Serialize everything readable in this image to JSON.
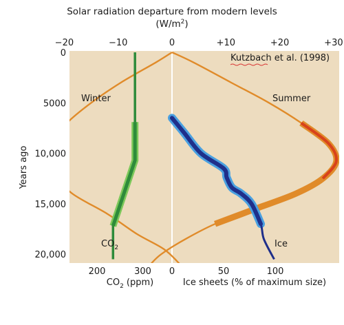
{
  "chart_data": {
    "type": "line",
    "title_line1": "Solar radiation departure from modern levels",
    "title_line2": "(W/m",
    "title_sup": "2",
    "title_close": ")",
    "ylabel": "Years ago",
    "y_axis": {
      "range": [
        0,
        20500
      ],
      "inverted": true,
      "ticks": [
        "0",
        "5000",
        "10,000",
        "15,000",
        "20,000"
      ],
      "tick_values": [
        0,
        5000,
        10000,
        15000,
        20000
      ]
    },
    "top_axis": {
      "label": "W/m2",
      "range": [
        -24,
        34
      ],
      "ticks": [
        "−20",
        "−10",
        "0",
        "+10",
        "+20",
        "+30"
      ],
      "tick_values": [
        -20,
        -10,
        0,
        10,
        20,
        30
      ]
    },
    "co2_axis": {
      "label_main": "CO",
      "label_sub": "2",
      "label_unit": " (ppm)",
      "range": [
        180,
        335
      ],
      "ticks": [
        "200",
        "300"
      ],
      "tick_values": [
        200,
        300
      ]
    },
    "ice_axis": {
      "label": "Ice sheets (% of maximum size)",
      "range": [
        0,
        140
      ],
      "ticks": [
        "0",
        "50",
        "100"
      ],
      "tick_values": [
        0,
        50,
        100
      ]
    },
    "citation": "Kutzbach et al. (1998)",
    "labels": {
      "winter": "Winter",
      "summer": "Summer",
      "co2_main": "CO",
      "co2_sub": "2",
      "ice": "Ice"
    },
    "colors": {
      "background": "#eddcbf",
      "insolation": "#e08b2a",
      "summer_band": "#d8421a",
      "co2": "#2e8b3a",
      "co2_light": "#7cc85a",
      "ice": "#1f2f8a",
      "ice_light": "#4aa0e0",
      "zero_line": "#ffffff",
      "citation_underline": "#d83030"
    },
    "series": [
      {
        "name": "Winter",
        "axis": "W/m2",
        "points": [
          [
            0,
            0
          ],
          [
            1000,
            -3
          ],
          [
            3000,
            -9.5
          ],
          [
            5000,
            -15
          ],
          [
            7000,
            -19.5
          ],
          [
            9000,
            -22.5
          ],
          [
            10500,
            -23
          ],
          [
            12000,
            -22
          ],
          [
            14000,
            -18.5
          ],
          [
            16000,
            -12
          ],
          [
            18000,
            -6.5
          ],
          [
            19500,
            -1.5
          ],
          [
            21000,
            1.5
          ]
        ]
      },
      {
        "name": "Summer",
        "axis": "W/m2",
        "points": [
          [
            0,
            0
          ],
          [
            1000,
            4
          ],
          [
            3000,
            11
          ],
          [
            5000,
            18
          ],
          [
            7000,
            24
          ],
          [
            9000,
            29
          ],
          [
            10800,
            30.5
          ],
          [
            12500,
            28
          ],
          [
            14000,
            23
          ],
          [
            15500,
            15.5
          ],
          [
            17000,
            8
          ],
          [
            18500,
            2.5
          ],
          [
            20000,
            -2
          ],
          [
            21000,
            -4
          ]
        ]
      },
      {
        "name": "CO2",
        "axis": "ppm",
        "points": [
          [
            0,
            283
          ],
          [
            6900,
            283
          ],
          [
            10700,
            283
          ],
          [
            17200,
            235
          ],
          [
            20500,
            235
          ]
        ]
      },
      {
        "name": "Ice",
        "axis": "percent",
        "points": [
          [
            6500,
            0
          ],
          [
            8000,
            12
          ],
          [
            10000,
            28
          ],
          [
            11500,
            50
          ],
          [
            12400,
            53
          ],
          [
            13400,
            58
          ],
          [
            14000,
            67
          ],
          [
            15000,
            77
          ],
          [
            17000,
            86
          ],
          [
            18500,
            89
          ],
          [
            20500,
            99
          ]
        ]
      }
    ]
  }
}
